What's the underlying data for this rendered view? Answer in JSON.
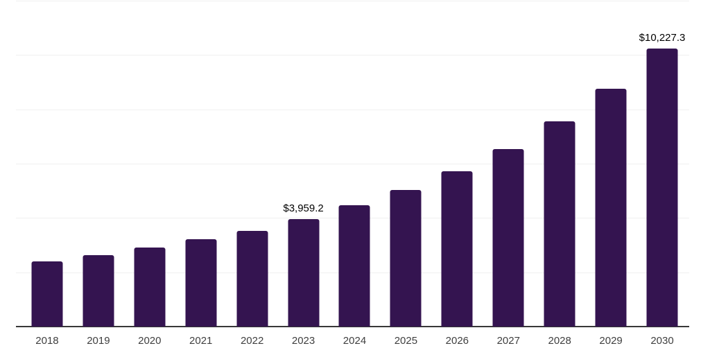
{
  "chart_data": {
    "type": "bar",
    "title": "",
    "xlabel": "",
    "ylabel": "",
    "categories": [
      "2018",
      "2019",
      "2020",
      "2021",
      "2022",
      "2023",
      "2024",
      "2025",
      "2026",
      "2027",
      "2028",
      "2029",
      "2030"
    ],
    "values": [
      2410,
      2640,
      2900,
      3210,
      3530,
      3959.2,
      4460,
      5030,
      5730,
      6530,
      7570,
      8770,
      10227.3
    ],
    "point_labels": [
      "",
      "",
      "",
      "",
      "",
      "$3,959.2",
      "",
      "",
      "",
      "",
      "",
      "",
      "$10,227.3"
    ],
    "ylim": [
      0,
      12000
    ],
    "gridline_values": [
      0,
      2000,
      4000,
      6000,
      8000,
      10000,
      12000
    ],
    "grid": true,
    "legend": false,
    "colors": {
      "bar": "#341450",
      "gridline": "#f0f0f0",
      "axis_line": "#383838",
      "tick_label": "#3f3f3f",
      "data_label": "#000000",
      "background": "#ffffff"
    }
  }
}
